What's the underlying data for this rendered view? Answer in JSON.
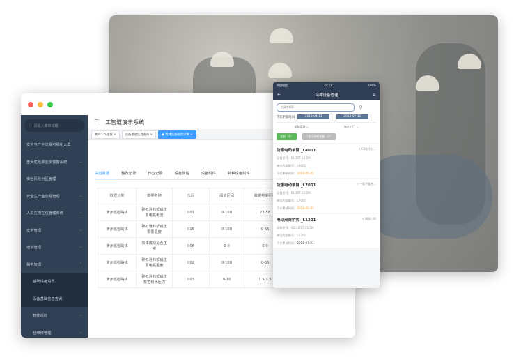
{
  "desktop": {
    "title": "工智道演示系统",
    "search_placeholder": "请输入菜单标题",
    "menu": [
      {
        "label": "安全生产全流程可视化大屏",
        "chev": ""
      },
      {
        "label": "重大危险源监测预警系统",
        "chev": "⌄"
      },
      {
        "label": "安全风险分区管理",
        "chev": "⌄"
      },
      {
        "label": "安全生产全流程管理",
        "chev": "⌄"
      },
      {
        "label": "人员在岗在位管理系统",
        "chev": "⌄"
      },
      {
        "label": "安全管理",
        "chev": "⌄"
      },
      {
        "label": "培训管理",
        "chev": "⌄"
      },
      {
        "label": "机电管理",
        "chev": "⌃"
      },
      {
        "label": "基础设备设置",
        "chev": ""
      },
      {
        "label": "设备基础信息查询",
        "chev": ""
      },
      {
        "label": "智能巡检",
        "chev": "⌄"
      },
      {
        "label": "检维修管理",
        "chev": "⌄"
      }
    ],
    "open_tabs": [
      "我的工作面板",
      "设备基础信息查询",
      "具体设备管理详情"
    ],
    "content_tabs": [
      "关键数据",
      "整改记录",
      "作业记录",
      "设备属性",
      "设备附件",
      "特种设备附件"
    ],
    "table": {
      "headers": [
        "数据分类",
        "数据名称",
        "代码",
        "阈值区间",
        "数据控制区间"
      ],
      "rows": [
        [
          "演示巡检路线",
          "碎石骨料浆输送泵电机电流",
          "001",
          "0-100",
          "22-58"
        ],
        [
          "演示巡检路线",
          "碎石骨料浆输送泵泵温度",
          "015",
          "0-100",
          "0-65"
        ],
        [
          "演示巡检路线",
          "泵体震动是否正常",
          "006",
          "0-0",
          "0-0"
        ],
        [
          "演示巡检路线",
          "碎石骨料浆输送泵电机温度",
          "002",
          "0-100",
          "0-85"
        ],
        [
          "演示巡检路线",
          "碎石骨料浆输送泵密封水压力",
          "003",
          "0-10",
          "1.5-3.5"
        ]
      ]
    }
  },
  "mobile": {
    "status": {
      "carrier": "中国电信",
      "time": "20:21",
      "battery": "100%"
    },
    "title": "特种设备管理",
    "search_placeholder": "关键字搜索",
    "date_label": "下次更新时间:",
    "date_from": "2018-04-11",
    "date_sep": "~",
    "date_to": "2018-07-11",
    "select_type": "全部类别",
    "select_factory": "南京工厂",
    "btn_all": "全部（3）",
    "btn_expired": "只显示临检设备（2）",
    "labels": {
      "model": "设备型号：",
      "code": "单位内部编号：",
      "next": "下次更新时间："
    },
    "cards": [
      {
        "name": "防爆电动单臂 _L4001",
        "loc": "C0实冷分...",
        "model": "BLDST-14.5M",
        "code": "L4001",
        "next": "2018-05-01",
        "overdue": true
      },
      {
        "name": "防爆电动单臂 _L7001",
        "loc": "一楼平复合...",
        "model": "BLDST-22.5M",
        "code": "L7001",
        "next": "2018-05-01",
        "overdue": true
      },
      {
        "name": "电动双梁桥式 _L1201",
        "loc": "霸强工序",
        "model": "QD32/5T-25.5M",
        "code": "L1201",
        "next": "2018-07-01",
        "overdue": false
      }
    ]
  },
  "colors": {
    "sidebar": "#304156",
    "accent": "#409eff",
    "mobile_header": "#2f3e55",
    "green": "#5cb85c",
    "overdue": "#f0a030"
  }
}
